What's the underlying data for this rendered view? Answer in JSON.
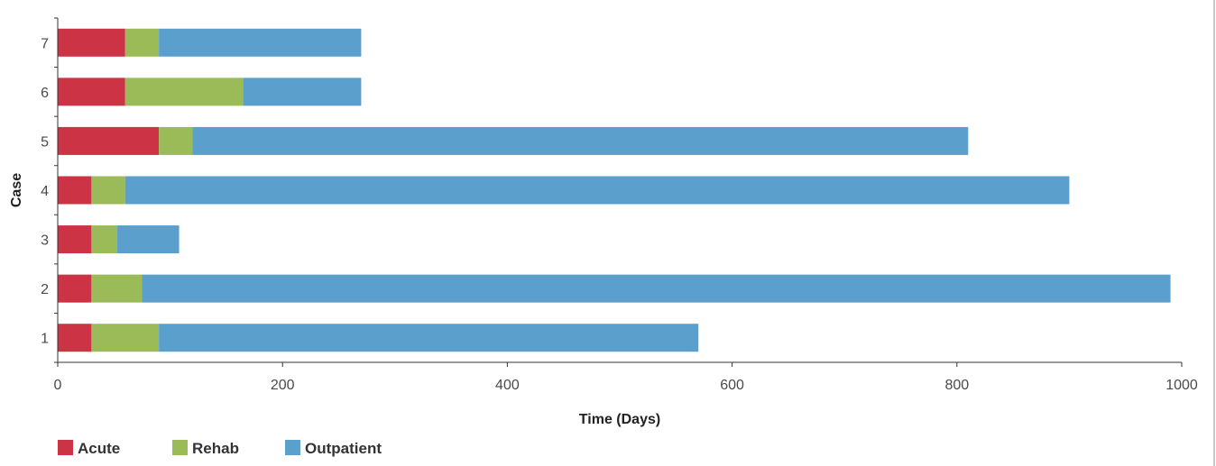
{
  "chart_data": {
    "type": "bar",
    "orientation": "horizontal",
    "stacked": true,
    "categories": [
      "1",
      "2",
      "3",
      "4",
      "5",
      "6",
      "7"
    ],
    "series": [
      {
        "name": "Acute",
        "color": "#cc3344",
        "values": [
          30,
          30,
          30,
          30,
          90,
          60,
          60
        ]
      },
      {
        "name": "Rehab",
        "color": "#9bbb59",
        "values": [
          60,
          45,
          23,
          30,
          30,
          105,
          30
        ]
      },
      {
        "name": "Outpatient",
        "color": "#5ba0cc",
        "values": [
          480,
          915,
          55,
          840,
          690,
          105,
          180
        ]
      }
    ],
    "xlabel": "Time (Days)",
    "ylabel": "Case",
    "xlim": [
      0,
      1000
    ],
    "xticks": [
      0,
      200,
      400,
      600,
      800,
      1000
    ],
    "grid": false,
    "legend_position": "bottom-left"
  }
}
